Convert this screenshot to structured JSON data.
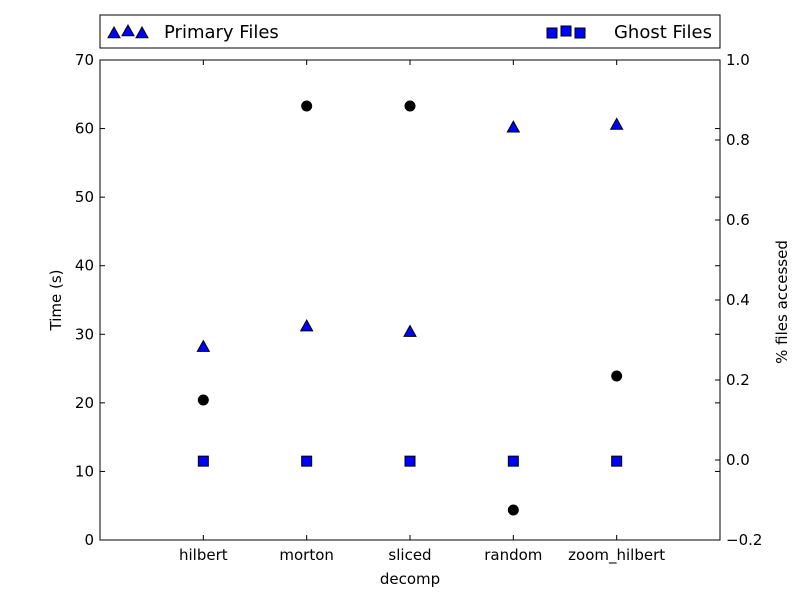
{
  "chart_data": {
    "type": "scatter",
    "categories": [
      "hilbert",
      "morton",
      "sliced",
      "random",
      "zoom_hilbert"
    ],
    "xlabel": "decomp",
    "ylabel": "Time (s)",
    "ylabel_right": "% files accessed",
    "ylim": [
      0,
      70
    ],
    "ylim_right": [
      -0.2,
      1.0
    ],
    "yticks": [
      "0",
      "10",
      "20",
      "30",
      "40",
      "50",
      "60",
      "70"
    ],
    "yticks_right": [
      "−0.2",
      "0.0",
      "0.2",
      "0.4",
      "0.6",
      "0.8",
      "1.0"
    ],
    "grid": false,
    "legend_position": "top",
    "series": [
      {
        "name": "Primary Files",
        "marker": "triangle",
        "color": "#0000ff",
        "axis": "left",
        "values": [
          28.2,
          31.2,
          30.4,
          60.2,
          60.6
        ]
      },
      {
        "name": "Ghost Files",
        "marker": "square",
        "color": "#0000ff",
        "axis": "left",
        "values": [
          11.5,
          11.5,
          11.5,
          11.5,
          11.5
        ]
      },
      {
        "marker": "circle",
        "color": "#000000",
        "axis": "right",
        "values": [
          0.15,
          0.885,
          0.885,
          -0.125,
          0.21
        ]
      }
    ]
  }
}
